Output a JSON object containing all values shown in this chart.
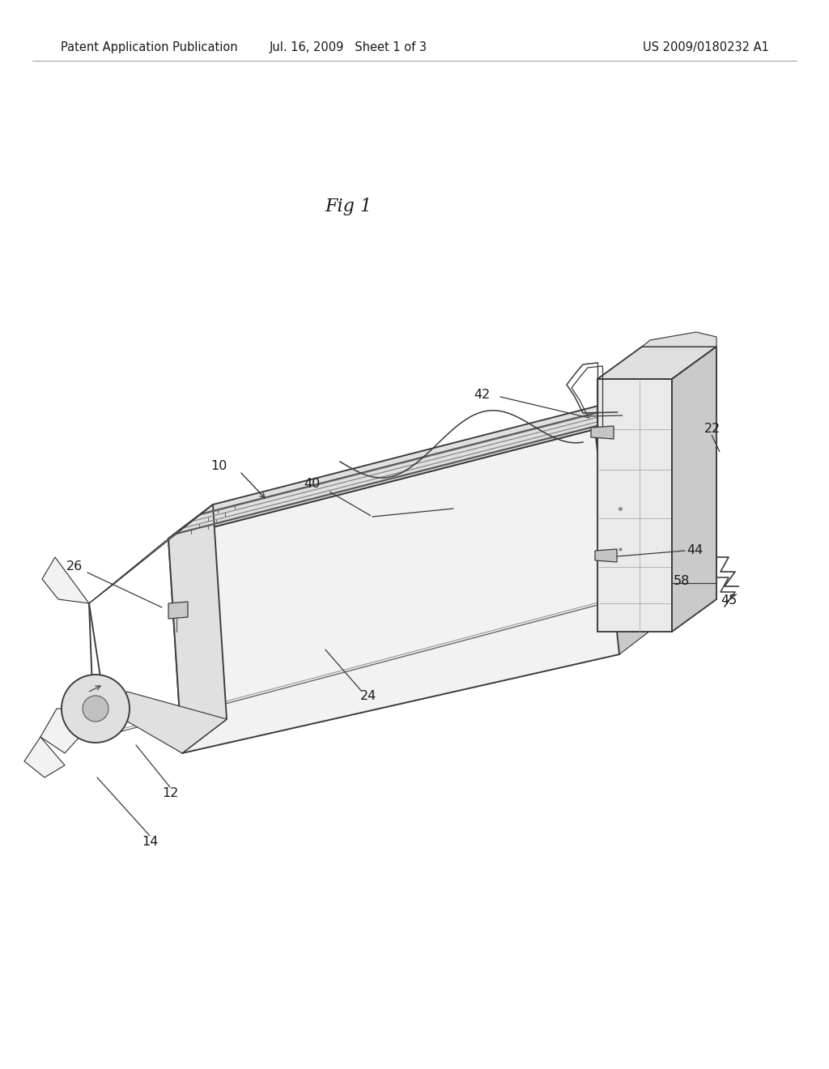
{
  "background_color": "#ffffff",
  "header_left": "Patent Application Publication",
  "header_mid": "Jul. 16, 2009   Sheet 1 of 3",
  "header_right": "US 2009/0180232 A1",
  "figure_label": "Fig 1",
  "line_color": "#3a3a3a",
  "text_color": "#1a1a1a",
  "header_fontsize": 10.5,
  "fig_label_fontsize": 16,
  "annotation_fontsize": 11.5,
  "face_light": "#f2f2f2",
  "face_mid": "#e0e0e0",
  "face_dark": "#cacaca",
  "face_box": "#eaeaea",
  "face_box_side": "#d0d0d0"
}
